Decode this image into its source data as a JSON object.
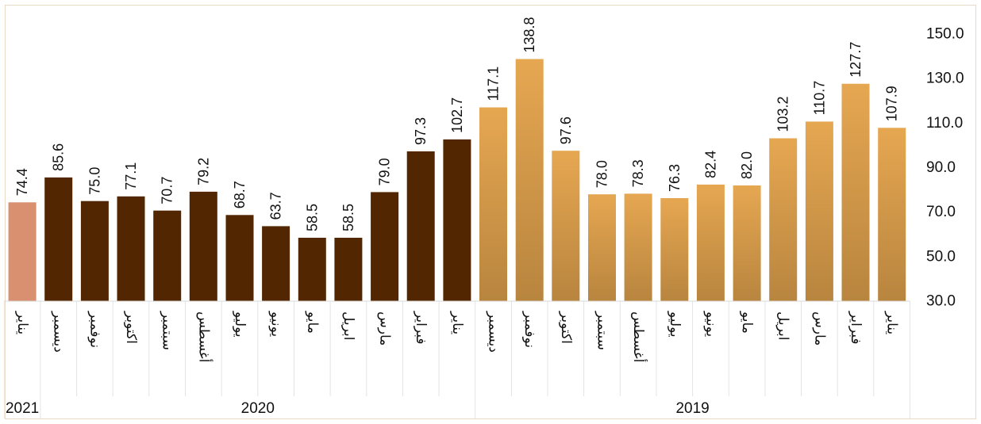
{
  "chart_data": {
    "type": "bar",
    "x_direction": "right-to-left",
    "y_axis_side": "right",
    "ylim": [
      30,
      160
    ],
    "y_ticks": [
      "30.0",
      "50.0",
      "70.0",
      "90.0",
      "110.0",
      "130.0",
      "150.0"
    ],
    "y_tick_values": [
      30,
      50,
      70,
      90,
      110,
      130,
      150
    ],
    "grid": false,
    "colors": {
      "2019": "#d9a04e",
      "2020": "#522600",
      "2021": "#d89071"
    },
    "groups": [
      {
        "year": "2019",
        "categories": [
          "يناير",
          "فبراير",
          "مارس",
          "ابريل",
          "مايو",
          "يونيو",
          "يوليو",
          "أغسطس",
          "سبتمبر",
          "اكتوبر",
          "نوفمبر",
          "ديسمبر"
        ],
        "values": [
          107.9,
          127.7,
          110.7,
          103.2,
          82.0,
          82.4,
          76.3,
          78.3,
          78.0,
          97.6,
          138.8,
          117.1
        ],
        "labels": [
          "107.9",
          "127.7",
          "110.7",
          "103.2",
          "82.0",
          "82.4",
          "76.3",
          "78.3",
          "78.0",
          "97.6",
          "138.8",
          "117.1"
        ]
      },
      {
        "year": "2020",
        "categories": [
          "يناير",
          "فبراير",
          "مارس",
          "ابريل",
          "مايو",
          "يونيو",
          "يوليو",
          "أغسطس",
          "سبتمبر",
          "اكتوبر",
          "نوفمبر",
          "ديسمبر"
        ],
        "values": [
          102.7,
          97.3,
          79.0,
          58.5,
          58.5,
          63.7,
          68.7,
          79.2,
          70.7,
          77.1,
          75.0,
          85.6
        ],
        "labels": [
          "102.7",
          "97.3",
          "79.0",
          "58.5",
          "58.5",
          "63.7",
          "68.7",
          "79.2",
          "70.7",
          "77.1",
          "75.0",
          "85.6"
        ]
      },
      {
        "year": "2021",
        "categories": [
          "يناير"
        ],
        "values": [
          74.4
        ],
        "labels": [
          "74.4"
        ]
      }
    ]
  }
}
